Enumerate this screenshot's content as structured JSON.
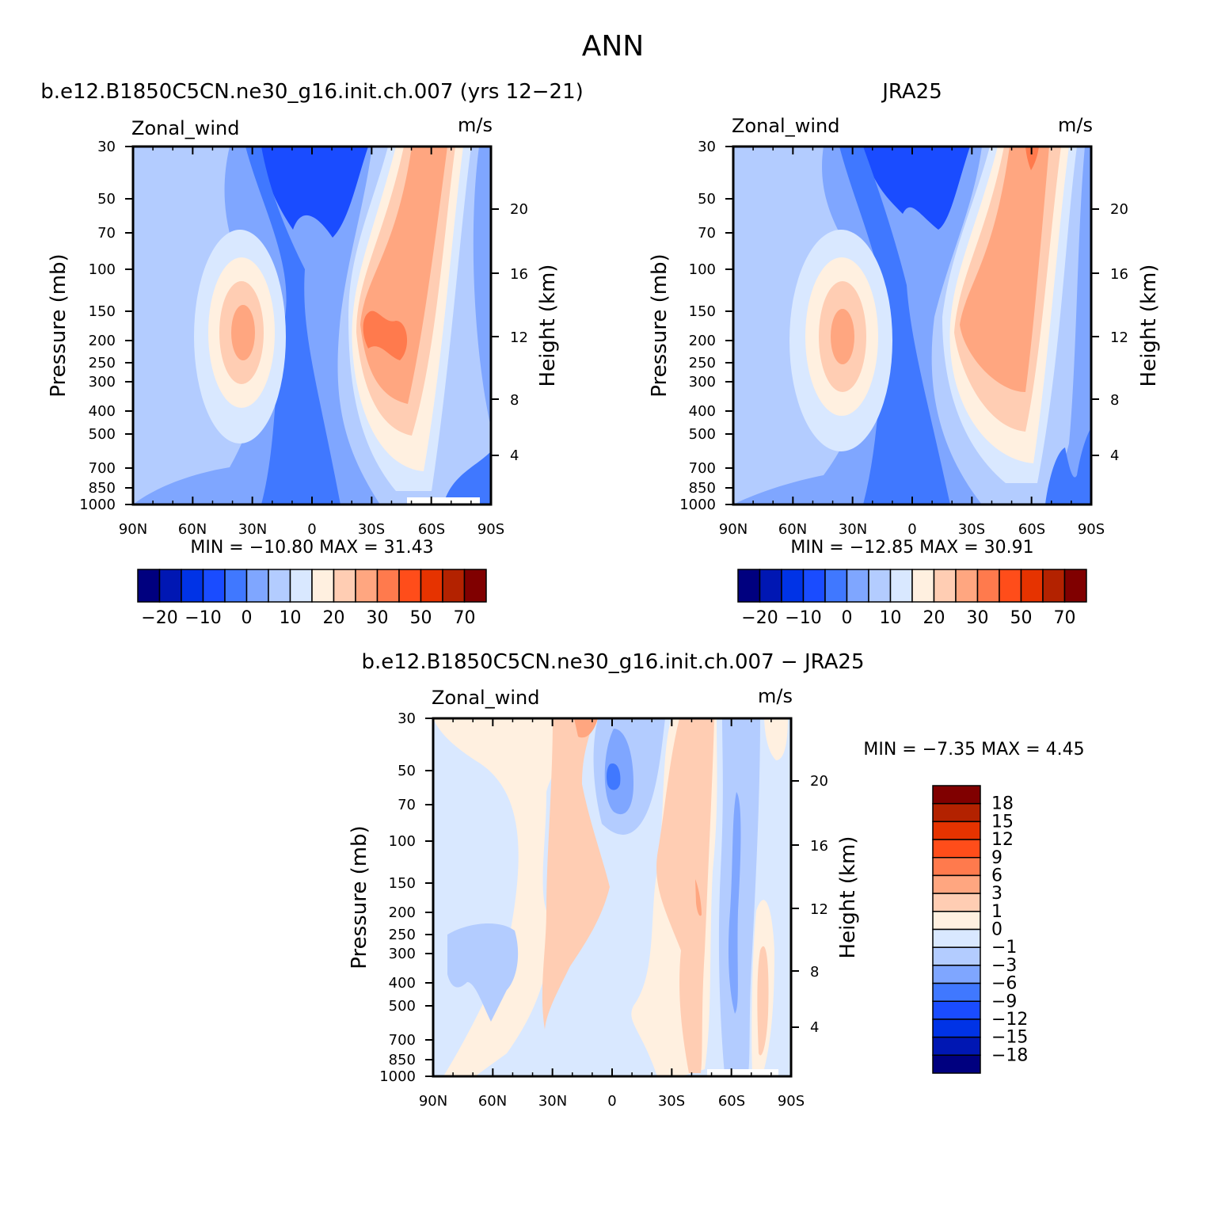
{
  "page": {
    "title": "ANN"
  },
  "chart_data": [
    {
      "type": "contour",
      "title": "b.e12.B1850C5CN.ne30_g16.init.ch.007 (yrs 12-21)",
      "subtitle_left": "Zonal_wind",
      "subtitle_right": "m/s",
      "ylabel": "Pressure (mb)",
      "ylabel_right": "Height (km)",
      "x_ticks": [
        "90N",
        "60N",
        "30N",
        "0",
        "30S",
        "60S",
        "90S"
      ],
      "y_ticks": [
        "30",
        "50",
        "70",
        "100",
        "150",
        "200",
        "250",
        "300",
        "400",
        "500",
        "700",
        "850",
        "1000"
      ],
      "y_right_ticks": [
        "20",
        "16",
        "12",
        "8",
        "4"
      ],
      "min_max_label": "MIN = -10.80 MAX = 31.43",
      "colorbar": {
        "orientation": "horizontal",
        "labels": [
          "-20",
          "-10",
          "0",
          "10",
          "20",
          "30",
          "50",
          "70"
        ],
        "colors": [
          "#00007f",
          "#0017b3",
          "#0033e6",
          "#1a4cff",
          "#4078ff",
          "#7fa6ff",
          "#b3ccff",
          "#d9e8ff",
          "#fff0e0",
          "#ffcdb3",
          "#ffa680",
          "#ff7a4d",
          "#ff4d1a",
          "#e63300",
          "#b32200",
          "#800000"
        ]
      }
    },
    {
      "type": "contour",
      "title": "JRA25",
      "subtitle_left": "Zonal_wind",
      "subtitle_right": "m/s",
      "ylabel": "Pressure (mb)",
      "ylabel_right": "Height (km)",
      "x_ticks": [
        "90N",
        "60N",
        "30N",
        "0",
        "30S",
        "60S",
        "90S"
      ],
      "y_ticks": [
        "30",
        "50",
        "70",
        "100",
        "150",
        "200",
        "250",
        "300",
        "400",
        "500",
        "700",
        "850",
        "1000"
      ],
      "y_right_ticks": [
        "20",
        "16",
        "12",
        "8",
        "4"
      ],
      "min_max_label": "MIN = -12.85 MAX = 30.91",
      "colorbar": {
        "orientation": "horizontal",
        "labels": [
          "-20",
          "-10",
          "0",
          "10",
          "20",
          "30",
          "50",
          "70"
        ],
        "colors": [
          "#00007f",
          "#0017b3",
          "#0033e6",
          "#1a4cff",
          "#4078ff",
          "#7fa6ff",
          "#b3ccff",
          "#d9e8ff",
          "#fff0e0",
          "#ffcdb3",
          "#ffa680",
          "#ff7a4d",
          "#ff4d1a",
          "#e63300",
          "#b32200",
          "#800000"
        ]
      }
    },
    {
      "type": "contour",
      "title": "b.e12.B1850C5CN.ne30_g16.init.ch.007 - JRA25",
      "subtitle_left": "Zonal_wind",
      "subtitle_right": "m/s",
      "ylabel": "Pressure (mb)",
      "ylabel_right": "Height (km)",
      "x_ticks": [
        "90N",
        "60N",
        "30N",
        "0",
        "30S",
        "60S",
        "90S"
      ],
      "y_ticks": [
        "30",
        "50",
        "70",
        "100",
        "150",
        "200",
        "250",
        "300",
        "400",
        "500",
        "700",
        "850",
        "1000"
      ],
      "y_right_ticks": [
        "20",
        "16",
        "12",
        "8",
        "4"
      ],
      "min_max_label": "MIN = -7.35 MAX = 4.45",
      "colorbar": {
        "orientation": "vertical",
        "labels": [
          "18",
          "15",
          "12",
          "9",
          "6",
          "3",
          "1",
          "0",
          "-1",
          "-3",
          "-6",
          "-9",
          "-12",
          "-15",
          "-18"
        ],
        "colors": [
          "#800000",
          "#b32200",
          "#e63300",
          "#ff4d1a",
          "#ff7a4d",
          "#ffa680",
          "#ffcdb3",
          "#fff0e0",
          "#d9e8ff",
          "#b3ccff",
          "#7fa6ff",
          "#4078ff",
          "#1a4cff",
          "#0033e6",
          "#0017b3",
          "#00007f"
        ]
      }
    }
  ]
}
